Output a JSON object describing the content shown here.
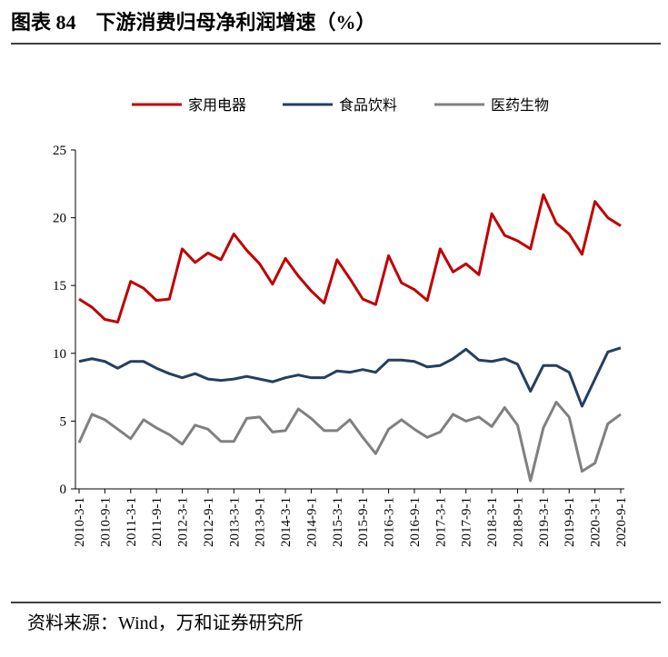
{
  "chart_data": {
    "type": "line",
    "title": "图表 84　下游消费归母净利润增速（%）",
    "source": "资料来源：Wind，万和证券研究所",
    "categories": [
      "2010-3-1",
      null,
      "2010-9-1",
      null,
      "2011-3-1",
      null,
      "2011-9-1",
      null,
      "2012-3-1",
      null,
      "2012-9-1",
      null,
      "2013-3-1",
      null,
      "2013-9-1",
      null,
      "2014-3-1",
      null,
      "2014-9-1",
      null,
      "2015-3-1",
      null,
      "2015-9-1",
      null,
      "2016-3-1",
      null,
      "2016-9-1",
      null,
      "2017-3-1",
      null,
      "2017-9-1",
      null,
      "2018-3-1",
      null,
      "2018-9-1",
      null,
      "2019-3-1",
      null,
      "2019-9-1",
      null,
      "2020-3-1",
      null,
      "2020-9-1"
    ],
    "series": [
      {
        "name": "家用电器",
        "color": "#c00000",
        "values": [
          14.0,
          13.4,
          12.5,
          12.3,
          15.3,
          14.8,
          13.9,
          14.0,
          17.7,
          16.7,
          17.4,
          16.9,
          18.8,
          17.6,
          16.6,
          15.1,
          17.0,
          15.7,
          14.6,
          13.7,
          16.9,
          15.5,
          14.0,
          13.6,
          17.2,
          15.2,
          14.7,
          13.9,
          17.7,
          16.0,
          16.6,
          15.8,
          20.3,
          18.7,
          18.3,
          17.7,
          21.7,
          19.6,
          18.8,
          17.3,
          21.2,
          20.0,
          19.4
        ]
      },
      {
        "name": "食品饮料",
        "color": "#243f60",
        "values": [
          9.4,
          9.6,
          9.4,
          8.9,
          9.4,
          9.4,
          8.9,
          8.5,
          8.2,
          8.5,
          8.1,
          8.0,
          8.1,
          8.3,
          8.1,
          7.9,
          8.2,
          8.4,
          8.2,
          8.2,
          8.7,
          8.6,
          8.8,
          8.6,
          9.5,
          9.5,
          9.4,
          9.0,
          9.1,
          9.6,
          10.3,
          9.5,
          9.4,
          9.6,
          9.2,
          7.2,
          9.1,
          9.1,
          8.6,
          6.1,
          8.1,
          10.1,
          10.4
        ]
      },
      {
        "name": "医药生物",
        "color": "#808080",
        "values": [
          3.4,
          5.5,
          5.1,
          4.4,
          3.7,
          5.1,
          4.5,
          4.0,
          3.3,
          4.7,
          4.4,
          3.5,
          3.5,
          5.2,
          5.3,
          4.2,
          4.3,
          5.9,
          5.2,
          4.3,
          4.3,
          5.1,
          3.8,
          2.6,
          4.4,
          5.1,
          4.4,
          3.8,
          4.2,
          5.5,
          5.0,
          5.3,
          4.6,
          6.0,
          4.7,
          0.6,
          4.5,
          6.4,
          5.3,
          1.3,
          1.9,
          4.8,
          5.5
        ]
      }
    ],
    "ylim": [
      0,
      25
    ],
    "yticks": [
      0,
      5,
      10,
      15,
      20,
      25
    ]
  }
}
